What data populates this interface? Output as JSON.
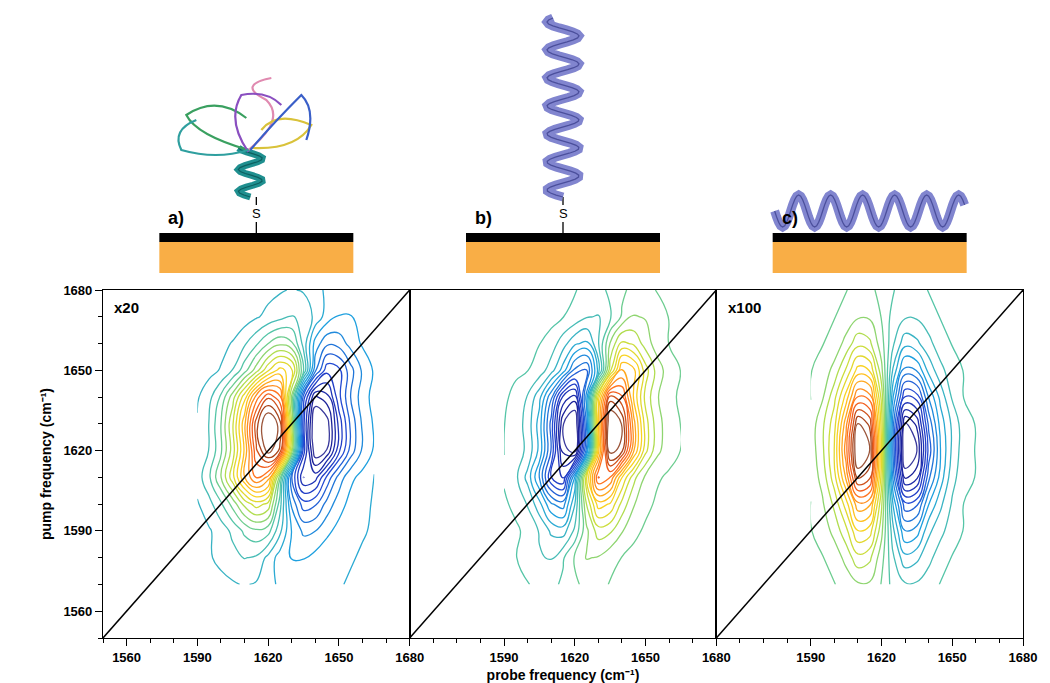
{
  "chart_data": [
    {
      "type": "contour",
      "panel_label": "a)",
      "linker_label": "S",
      "annotations": [
        "x20"
      ],
      "ylabel": "pump frequency (cm⁻¹)",
      "xlim": [
        1550,
        1680
      ],
      "ylim": [
        1550,
        1680
      ],
      "xticks": [
        1560,
        1590,
        1620,
        1650,
        1680
      ],
      "yticks": [
        1560,
        1590,
        1620,
        1650,
        1680
      ],
      "zlim": [
        -1,
        1
      ],
      "x": [
        1590,
        1595,
        1600,
        1605,
        1610,
        1615,
        1620,
        1625,
        1630,
        1635,
        1640,
        1645,
        1650,
        1655,
        1660,
        1665
      ],
      "y": [
        1570,
        1580,
        1590,
        1600,
        1610,
        1620,
        1630,
        1640,
        1650,
        1660,
        1670,
        1680
      ],
      "z": [
        [
          0.01,
          0.02,
          0.03,
          0.04,
          0.05,
          0.04,
          0.02,
          -0.02,
          -0.03,
          -0.03,
          -0.02,
          -0.01,
          -0.01,
          0,
          0,
          0
        ],
        [
          0.02,
          0.04,
          0.06,
          0.08,
          0.1,
          0.09,
          0.03,
          -0.03,
          -0.06,
          -0.06,
          -0.04,
          -0.02,
          -0.01,
          -0.01,
          0,
          0
        ],
        [
          0.02,
          0.04,
          0.07,
          0.11,
          0.16,
          0.19,
          0.17,
          0.06,
          -0.06,
          -0.12,
          -0.11,
          -0.07,
          -0.04,
          -0.02,
          -0.01,
          0
        ],
        [
          0.04,
          0.08,
          0.14,
          0.22,
          0.32,
          0.38,
          0.34,
          0.12,
          -0.12,
          -0.24,
          -0.22,
          -0.14,
          -0.08,
          -0.04,
          -0.02,
          0
        ],
        [
          0.07,
          0.14,
          0.25,
          0.39,
          0.56,
          0.67,
          0.6,
          0.21,
          -0.21,
          -0.42,
          -0.39,
          -0.25,
          -0.14,
          -0.07,
          -0.04,
          0
        ],
        [
          0.05,
          0.1,
          0.19,
          0.33,
          0.52,
          0.76,
          0.9,
          0.81,
          0.29,
          -0.29,
          -0.57,
          -0.52,
          -0.33,
          -0.19,
          -0.1,
          -0.05
        ],
        [
          0.05,
          0.1,
          0.2,
          0.35,
          0.55,
          0.8,
          0.95,
          0.85,
          0.3,
          -0.3,
          -0.6,
          -0.55,
          -0.35,
          -0.2,
          -0.1,
          -0.05
        ],
        [
          0.04,
          0.08,
          0.16,
          0.28,
          0.44,
          0.64,
          0.76,
          0.68,
          0.24,
          -0.24,
          -0.48,
          -0.44,
          -0.28,
          -0.16,
          -0.08,
          -0.04
        ],
        [
          0.01,
          0.03,
          0.05,
          0.1,
          0.18,
          0.28,
          0.4,
          0.48,
          0.43,
          0.15,
          -0.15,
          -0.3,
          -0.28,
          -0.18,
          -0.1,
          -0.05
        ],
        [
          0,
          0.01,
          0.03,
          0.05,
          0.09,
          0.14,
          0.2,
          0.24,
          0.21,
          0.08,
          -0.08,
          -0.15,
          -0.14,
          -0.09,
          -0.05,
          -0.03
        ],
        [
          0,
          0,
          0.01,
          0.01,
          0.02,
          0.04,
          0.06,
          0.08,
          0.1,
          0.09,
          0.03,
          -0.03,
          -0.06,
          -0.06,
          -0.04,
          -0.02
        ],
        [
          0,
          0,
          0,
          0.01,
          0.01,
          0.02,
          0.03,
          0.04,
          0.05,
          0.04,
          0.02,
          -0.02,
          -0.03,
          -0.03,
          -0.02,
          -0.01
        ]
      ]
    },
    {
      "type": "contour",
      "panel_label": "b)",
      "linker_label": "S",
      "tick_labels": "x",
      "xlabel": "probe frequency (cm⁻¹)",
      "xlim": [
        1550,
        1680
      ],
      "ylim": [
        1550,
        1680
      ],
      "xticks": [
        1590,
        1620,
        1650,
        1680
      ],
      "zlim": [
        -1,
        1
      ],
      "x": [
        1590,
        1595,
        1600,
        1605,
        1610,
        1615,
        1620,
        1625,
        1630,
        1635,
        1640,
        1645,
        1650,
        1655,
        1660,
        1665
      ],
      "y": [
        1570,
        1580,
        1590,
        1600,
        1610,
        1620,
        1630,
        1640,
        1650,
        1660,
        1670,
        1680
      ],
      "z": [
        [
          -0.01,
          -0.01,
          -0.03,
          -0.04,
          -0.05,
          -0.02,
          0.02,
          0.05,
          0.04,
          0.03,
          0.01,
          0.01,
          0,
          0,
          0,
          0
        ],
        [
          -0.01,
          -0.03,
          -0.05,
          -0.09,
          -0.1,
          -0.04,
          0.04,
          0.1,
          0.09,
          0.05,
          0.03,
          0.01,
          0.01,
          0,
          0,
          0
        ],
        [
          -0.01,
          -0.02,
          -0.05,
          -0.1,
          -0.17,
          -0.19,
          -0.08,
          0.08,
          0.19,
          0.17,
          0.1,
          0.05,
          0.02,
          0.01,
          0.01,
          0
        ],
        [
          -0.02,
          -0.05,
          -0.1,
          -0.2,
          -0.34,
          -0.38,
          -0.16,
          0.16,
          0.38,
          0.34,
          0.2,
          0.1,
          0.05,
          0.02,
          0.01,
          0
        ],
        [
          -0.04,
          -0.08,
          -0.18,
          -0.35,
          -0.6,
          -0.67,
          -0.28,
          0.28,
          0.67,
          0.6,
          0.35,
          0.18,
          0.08,
          0.04,
          0.02,
          0.01
        ],
        [
          -0.03,
          -0.06,
          -0.11,
          -0.24,
          -0.48,
          -0.81,
          -0.9,
          -0.38,
          0.38,
          0.9,
          0.81,
          0.48,
          0.24,
          0.11,
          0.06,
          0.03
        ],
        [
          -0.03,
          -0.06,
          -0.12,
          -0.25,
          -0.5,
          -0.85,
          -0.95,
          -0.4,
          0.4,
          0.95,
          0.85,
          0.5,
          0.25,
          0.12,
          0.06,
          0.03
        ],
        [
          -0.02,
          -0.05,
          -0.1,
          -0.2,
          -0.4,
          -0.68,
          -0.76,
          -0.32,
          0.32,
          0.76,
          0.68,
          0.4,
          0.2,
          0.1,
          0.05,
          0.02
        ],
        [
          -0.01,
          -0.02,
          -0.03,
          -0.06,
          -0.13,
          -0.25,
          -0.43,
          -0.48,
          -0.2,
          0.2,
          0.48,
          0.43,
          0.25,
          0.13,
          0.06,
          0.03
        ],
        [
          0,
          -0.01,
          -0.02,
          -0.03,
          -0.06,
          -0.13,
          -0.21,
          -0.24,
          -0.1,
          0.1,
          0.24,
          0.21,
          0.13,
          0.06,
          0.03,
          0.02
        ],
        [
          0,
          0,
          0,
          -0.01,
          -0.01,
          -0.03,
          -0.05,
          -0.09,
          -0.1,
          -0.04,
          0.04,
          0.1,
          0.09,
          0.05,
          0.03,
          0.01
        ],
        [
          0,
          0,
          0,
          0,
          -0.01,
          -0.01,
          -0.03,
          -0.04,
          -0.05,
          -0.02,
          0.02,
          0.05,
          0.04,
          0.03,
          0.01,
          0.01
        ]
      ]
    },
    {
      "type": "contour",
      "panel_label": "c)",
      "annotations": [
        "x100"
      ],
      "tick_labels": "x",
      "xlim": [
        1550,
        1680
      ],
      "ylim": [
        1550,
        1680
      ],
      "xticks": [
        1590,
        1620,
        1650,
        1680
      ],
      "zlim": [
        -1,
        1
      ],
      "x": [
        1590,
        1595,
        1600,
        1605,
        1610,
        1615,
        1620,
        1625,
        1630,
        1635,
        1640,
        1645,
        1650,
        1655,
        1660,
        1665
      ],
      "y": [
        1570,
        1580,
        1590,
        1600,
        1610,
        1620,
        1630,
        1640,
        1650,
        1660,
        1670,
        1680
      ],
      "z": [
        [
          0,
          0.01,
          0.01,
          0.02,
          0.03,
          0.03,
          0.01,
          -0.02,
          -0.03,
          -0.03,
          -0.02,
          -0.01,
          -0.01,
          0,
          0,
          0
        ],
        [
          0,
          0.01,
          0.02,
          0.04,
          0.07,
          0.06,
          0.02,
          -0.03,
          -0.07,
          -0.06,
          -0.04,
          -0.02,
          -0.01,
          0,
          0,
          0
        ],
        [
          0.01,
          0.02,
          0.04,
          0.07,
          0.12,
          0.11,
          0.04,
          -0.05,
          -0.12,
          -0.11,
          -0.06,
          -0.04,
          -0.02,
          -0.01,
          0,
          0
        ],
        [
          0.01,
          0.03,
          0.06,
          0.11,
          0.18,
          0.17,
          0.06,
          -0.08,
          -0.18,
          -0.17,
          -0.1,
          -0.06,
          -0.03,
          -0.01,
          -0.01,
          0
        ],
        [
          0.02,
          0.04,
          0.09,
          0.17,
          0.28,
          0.26,
          0.09,
          -0.13,
          -0.28,
          -0.26,
          -0.15,
          -0.09,
          -0.04,
          -0.02,
          -0.01,
          0
        ],
        [
          0.02,
          0.05,
          0.1,
          0.2,
          0.33,
          0.3,
          0.1,
          -0.15,
          -0.33,
          -0.3,
          -0.18,
          -0.1,
          -0.05,
          -0.02,
          -0.01,
          0
        ],
        [
          0.02,
          0.05,
          0.09,
          0.18,
          0.3,
          0.27,
          0.09,
          -0.14,
          -0.3,
          -0.27,
          -0.16,
          -0.09,
          -0.05,
          -0.02,
          -0.01,
          0
        ],
        [
          0.01,
          0.03,
          0.07,
          0.13,
          0.21,
          0.2,
          0.07,
          -0.1,
          -0.21,
          -0.2,
          -0.12,
          -0.07,
          -0.03,
          -0.01,
          -0.01,
          0
        ],
        [
          0.01,
          0.02,
          0.04,
          0.08,
          0.13,
          0.12,
          0.04,
          -0.06,
          -0.13,
          -0.12,
          -0.07,
          -0.04,
          -0.02,
          -0.01,
          0,
          0
        ],
        [
          0,
          0.01,
          0.02,
          0.04,
          0.07,
          0.06,
          0.02,
          -0.03,
          -0.07,
          -0.06,
          -0.04,
          -0.02,
          -0.01,
          0,
          0,
          0
        ],
        [
          0,
          0.01,
          0.01,
          0.02,
          0.03,
          0.03,
          0.01,
          -0.02,
          -0.03,
          -0.03,
          -0.02,
          -0.01,
          -0.01,
          0,
          0,
          0
        ],
        [
          0,
          0,
          0.01,
          0.01,
          0.02,
          0.02,
          0,
          -0.01,
          -0.02,
          -0.02,
          -0.01,
          -0.01,
          0,
          0,
          0,
          0
        ]
      ]
    }
  ]
}
